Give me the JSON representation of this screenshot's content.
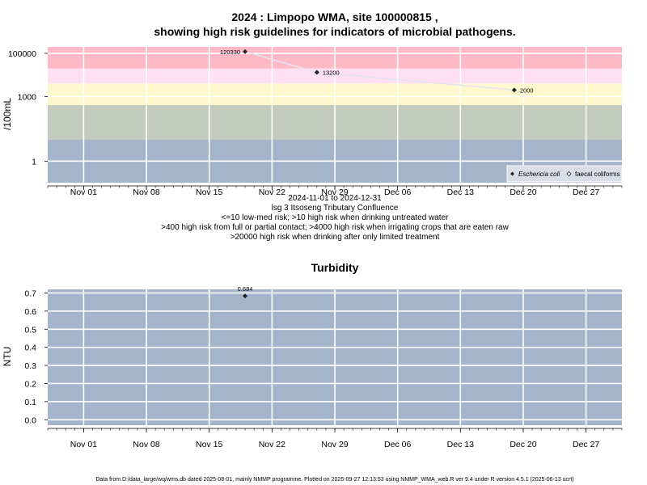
{
  "chart_data": [
    {
      "type": "line",
      "title_line1": "2024 : Limpopo WMA, site 100000815 ,",
      "title_line2": "showing high risk guidelines for indicators of microbial pathogens.",
      "ylabel": "/100mL",
      "yscale": "log",
      "ylim": [
        0.1,
        200000
      ],
      "yticks": [
        {
          "v": 1,
          "label": "1"
        },
        {
          "v": 1000,
          "label": "1000"
        },
        {
          "v": 100000,
          "label": "100000"
        }
      ],
      "xlim": [
        "2024-10-28",
        "2024-12-31"
      ],
      "xticks": [
        {
          "date": "2024-11-01",
          "label": "Nov 01"
        },
        {
          "date": "2024-11-08",
          "label": "Nov 08"
        },
        {
          "date": "2024-11-15",
          "label": "Nov 15"
        },
        {
          "date": "2024-11-22",
          "label": "Nov 22"
        },
        {
          "date": "2024-11-29",
          "label": "Nov 29"
        },
        {
          "date": "2024-12-06",
          "label": "Dec 06"
        },
        {
          "date": "2024-12-13",
          "label": "Dec 13"
        },
        {
          "date": "2024-12-20",
          "label": "Dec 20"
        },
        {
          "date": "2024-12-27",
          "label": "Dec 27"
        }
      ],
      "risk_bands": [
        {
          "from": 0.1,
          "to": 10,
          "color": "#a3b4cb"
        },
        {
          "from": 10,
          "to": 400,
          "color": "#c3cbbe"
        },
        {
          "from": 400,
          "to": 4000,
          "color": "#fcf8cb"
        },
        {
          "from": 4000,
          "to": 20000,
          "color": "#ffe0f2"
        },
        {
          "from": 20000,
          "to": 200000,
          "color": "#ffb8c6"
        }
      ],
      "series": [
        {
          "name": "Eschericia coli",
          "marker": "filled-diamond",
          "points": [
            {
              "date": "2024-11-19",
              "value": 120330,
              "label": "120330"
            },
            {
              "date": "2024-11-27",
              "value": 13200,
              "label": "13200"
            },
            {
              "date": "2024-12-19",
              "value": 2000,
              "label": "2000"
            }
          ]
        },
        {
          "name": "faecal coliforms",
          "marker": "open-diamond",
          "points": []
        }
      ],
      "legend_position": "bottom-right",
      "caption": [
        "2024-11-01 to 2024-12-31",
        "lsg 3 Itsoseng Tributary Confluence",
        "<=10 low-med risk; >10 high risk when drinking untreated water",
        ">400 high risk from full or partial contact; >4000 high risk when irrigating crops that are eaten raw",
        ">20000 high risk when drinking after only limited treatment"
      ],
      "grid": true
    },
    {
      "type": "scatter",
      "title": "Turbidity",
      "ylabel": "NTU",
      "ylim": [
        -0.03,
        0.72
      ],
      "yticks": [
        0.0,
        0.1,
        0.2,
        0.3,
        0.4,
        0.5,
        0.6,
        0.7
      ],
      "ytick_labels": [
        "0.0",
        "0.1",
        "0.2",
        "0.3",
        "0.4",
        "0.5",
        "0.6",
        "0.7"
      ],
      "xlim": [
        "2024-10-28",
        "2024-12-31"
      ],
      "xticks": [
        {
          "date": "2024-11-01",
          "label": "Nov 01"
        },
        {
          "date": "2024-11-08",
          "label": "Nov 08"
        },
        {
          "date": "2024-11-15",
          "label": "Nov 15"
        },
        {
          "date": "2024-11-22",
          "label": "Nov 22"
        },
        {
          "date": "2024-11-29",
          "label": "Nov 29"
        },
        {
          "date": "2024-12-06",
          "label": "Dec 06"
        },
        {
          "date": "2024-12-13",
          "label": "Dec 13"
        },
        {
          "date": "2024-12-20",
          "label": "Dec 20"
        },
        {
          "date": "2024-12-27",
          "label": "Dec 27"
        }
      ],
      "background": "#a3b4cb",
      "series": [
        {
          "points": [
            {
              "date": "2024-11-19",
              "value": 0.684,
              "label": "0.684"
            }
          ]
        }
      ],
      "grid": true
    }
  ],
  "footer": "Data from D:/data_large/wq/wms.db dated 2025-08-01, mainly NMMP programme. Plotted on 2025-09-27 12:13:53 using NMMP_WMA_web.R ver 9.4 under R version 4.5.1 (2025-06-13 ucrt)"
}
